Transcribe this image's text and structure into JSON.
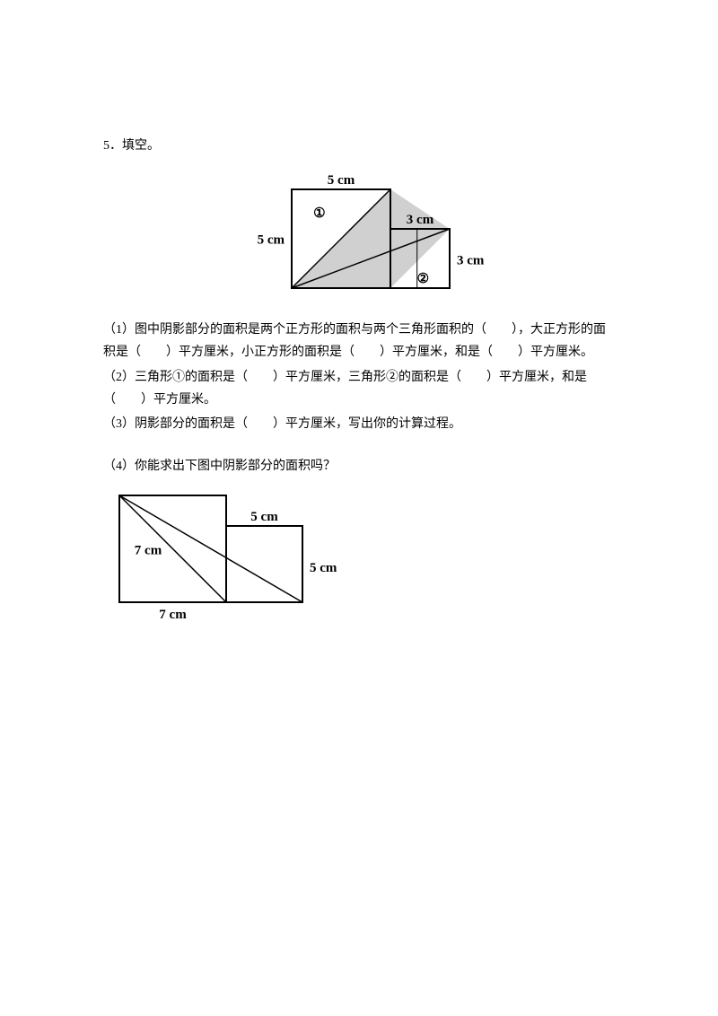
{
  "heading": "5．填空。",
  "figure1": {
    "top_label": "5 cm",
    "left_label": "5 cm",
    "right_top_label": "3 cm",
    "right_label": "3 cm",
    "circle1": "①",
    "circle2": "②",
    "big_square": 5,
    "small_square": 3,
    "stroke_color": "#000000",
    "fill_color": "#d0d0d0",
    "font_size": 15
  },
  "sub1": "（1）图中阴影部分的面积是两个正方形的面积与两个三角形面积的（　　），大正方形的面积是（　　）平方厘米，小正方形的面积是（　　）平方厘米，和是（　　）平方厘米。",
  "sub2": "（2）三角形①的面积是（　　）平方厘米，三角形②的面积是（　　）平方厘米，和是（　　）平方厘米。",
  "sub3": "（3）阴影部分的面积是（　　）平方厘米，写出你的计算过程。",
  "sub4": "（4）你能求出下图中阴影部分的面积吗？",
  "figure2": {
    "top_label": "5 cm",
    "left_label": "7 cm",
    "right_label": "5 cm",
    "bottom_label": "7 cm",
    "big_square": 7,
    "small_square": 5,
    "stroke_color": "#000000",
    "font_size": 15
  }
}
